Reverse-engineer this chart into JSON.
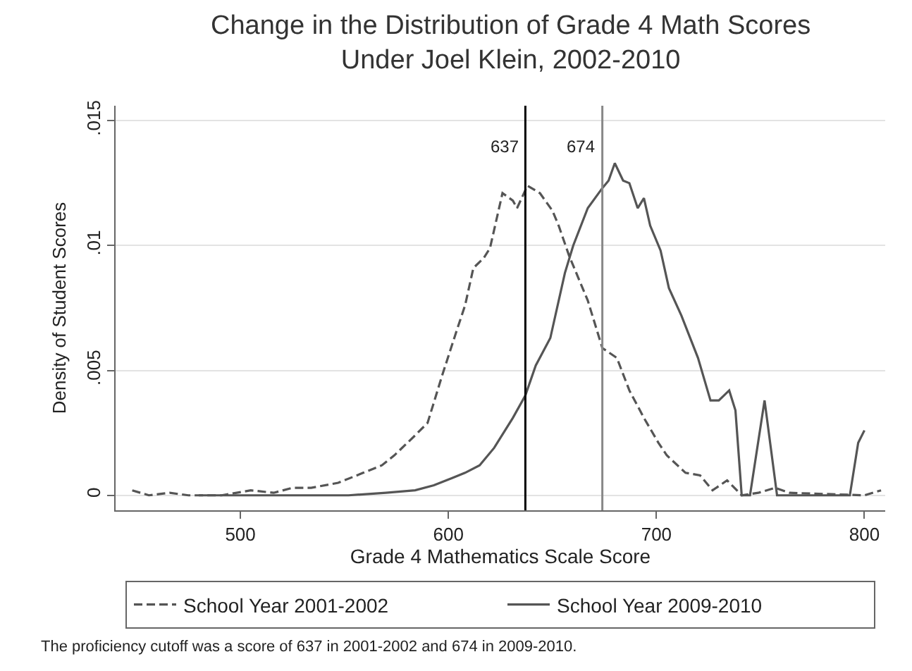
{
  "chart_data": {
    "type": "line",
    "title": "Change in the Distribution of Grade 4 Math Scores\nUnder Joel Klein, 2002-2010",
    "xlabel": "Grade 4 Mathematics Scale Score",
    "ylabel": "Density of Student Scores",
    "series": [
      {
        "name": "School Year 2001-2002",
        "color": "#555555",
        "line_style": "dashed",
        "x": [
          448,
          456,
          466,
          475,
          491,
          505,
          516,
          525,
          534,
          547,
          559,
          568,
          574,
          584,
          590,
          597,
          604,
          608,
          612,
          617,
          620,
          626,
          631,
          633,
          638,
          644,
          650,
          653,
          658,
          667,
          674,
          681,
          687,
          694,
          701,
          705,
          714,
          721,
          727,
          734,
          741,
          749,
          757,
          764,
          800,
          808
        ],
        "values": [
          0.0002,
          0,
          0.0001,
          0,
          0,
          0.0002,
          0.0001,
          0.0003,
          0.0003,
          0.0005,
          0.0009,
          0.0012,
          0.0016,
          0.0024,
          0.0029,
          0.0048,
          0.0066,
          0.0076,
          0.0091,
          0.0095,
          0.0099,
          0.0121,
          0.0118,
          0.0115,
          0.0124,
          0.0121,
          0.0114,
          0.0108,
          0.0096,
          0.0078,
          0.0059,
          0.0055,
          0.0042,
          0.0031,
          0.0021,
          0.0016,
          0.0009,
          0.0008,
          0.0002,
          0.0006,
          0,
          0.0001,
          0.0003,
          0.0001,
          0,
          0.0002
        ]
      },
      {
        "name": "School Year 2009-2010",
        "color": "#555555",
        "line_style": "solid",
        "x": [
          480,
          536,
          552,
          570,
          584,
          593,
          602,
          608,
          615,
          622,
          631,
          637,
          642,
          649,
          656,
          660,
          667,
          674,
          677,
          680,
          684,
          687,
          691,
          694,
          697,
          702,
          706,
          712,
          720,
          726,
          730,
          735,
          738,
          741,
          745,
          752,
          758,
          793,
          797,
          800
        ],
        "values": [
          0,
          0,
          0,
          0.0001,
          0.0002,
          0.0004,
          0.0007,
          0.0009,
          0.0012,
          0.0019,
          0.0031,
          0.004,
          0.0052,
          0.0063,
          0.0089,
          0.01,
          0.0115,
          0.0123,
          0.0126,
          0.0133,
          0.0126,
          0.0125,
          0.0115,
          0.0119,
          0.0108,
          0.0098,
          0.0083,
          0.0072,
          0.0055,
          0.0038,
          0.0038,
          0.0042,
          0.0034,
          0,
          0,
          0.0038,
          0,
          0,
          0.0021,
          0.0026
        ]
      }
    ],
    "xlim": [
      440,
      810
    ],
    "xticks": [
      500,
      600,
      700,
      800
    ],
    "ylim": [
      -0.0006,
      0.0156
    ],
    "yticks": [
      {
        "value": 0,
        "label": "0"
      },
      {
        "value": 0.005,
        "label": ".005"
      },
      {
        "value": 0.01,
        "label": ".01"
      },
      {
        "value": 0.015,
        "label": ".015"
      }
    ],
    "grid": "y",
    "legend": "bottom",
    "marker": "none",
    "ref_lines": [
      {
        "axis": "x",
        "value": 637,
        "label": "637",
        "color": "#000000"
      },
      {
        "axis": "x",
        "value": 674,
        "label": "674",
        "color": "#888888"
      }
    ],
    "annotations": [
      "The proficiency cutoff was a score of 637 in 2001-2002 and 674 in 2009-2010."
    ]
  }
}
